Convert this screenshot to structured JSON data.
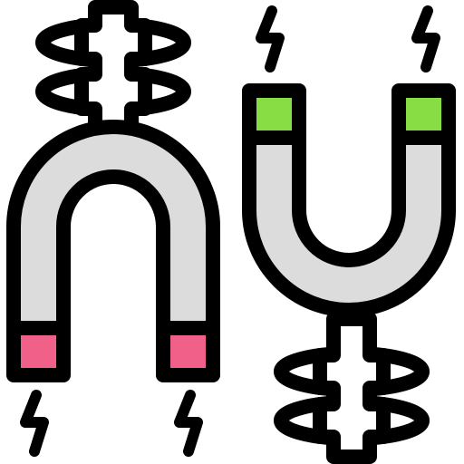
{
  "icon": {
    "name": "magnets-repulsion-icon",
    "colors": {
      "outline": "#000000",
      "metal": "#dcdcdc",
      "pole_red": "#f06088",
      "pole_green": "#88dd44",
      "background": "#ffffff"
    },
    "magnets": [
      {
        "name": "left-magnet",
        "orientation": "arch-up",
        "pole_color": "pole_red"
      },
      {
        "name": "right-magnet",
        "orientation": "u-shape",
        "pole_color": "pole_green"
      }
    ]
  }
}
